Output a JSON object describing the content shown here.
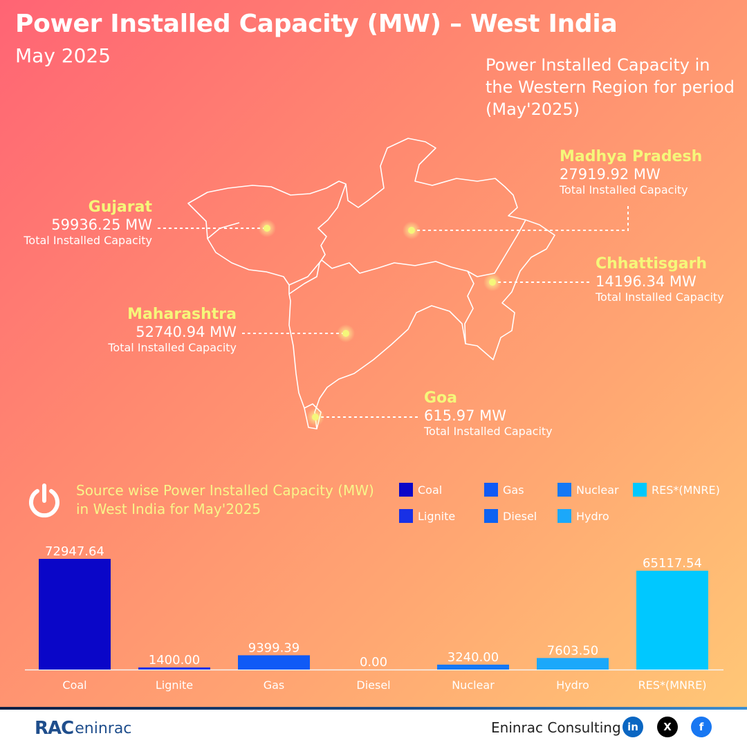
{
  "header": {
    "title": "Power Installed Capacity (MW) – West India",
    "subtitle": "May 2025",
    "intro": "Power Installed Capacity in the Western Region for period (May'2025)"
  },
  "states": [
    {
      "name": "Gujarat",
      "mw": "59936.25 MW",
      "caption": "Total Installed Capacity"
    },
    {
      "name": "Madhya Pradesh",
      "mw": "27919.92 MW",
      "caption": "Total Installed Capacity"
    },
    {
      "name": "Chhattisgarh",
      "mw": "14196.34 MW",
      "caption": "Total Installed Capacity"
    },
    {
      "name": "Maharashtra",
      "mw": "52740.94 MW",
      "caption": "Total Installed Capacity"
    },
    {
      "name": "Goa",
      "mw": "615.97 MW",
      "caption": "Total Installed Capacity"
    }
  ],
  "source_section": {
    "title": "Source wise Power Installed Capacity (MW) in West India for May'2025",
    "icon": "power-icon"
  },
  "chart_data": {
    "type": "bar",
    "categories": [
      "Coal",
      "Lignite",
      "Gas",
      "Diesel",
      "Nuclear",
      "Hydro",
      "RES*(MNRE)"
    ],
    "values": [
      72947.64,
      1400.0,
      9399.39,
      0.0,
      3240.0,
      7603.5,
      65117.54
    ],
    "value_labels": [
      "72947.64",
      "1400.00",
      "9399.39",
      "0.00",
      "3240.00",
      "7603.50",
      "65117.54"
    ],
    "colors": [
      "#0a06c8",
      "#1830e6",
      "#0f5af6",
      "#0d62f2",
      "#1478f5",
      "#1ba8fa",
      "#00c8ff"
    ],
    "legend": [
      {
        "label": "Coal",
        "color": "#0a06c8"
      },
      {
        "label": "Gas",
        "color": "#0f5af6"
      },
      {
        "label": "Nuclear",
        "color": "#1478f5"
      },
      {
        "label": "RES*(MNRE)",
        "color": "#00c8ff"
      },
      {
        "label": "Lignite",
        "color": "#1830e6"
      },
      {
        "label": "Diesel",
        "color": "#0d62f2"
      },
      {
        "label": "Hydro",
        "color": "#1ba8fa"
      }
    ],
    "ylim": [
      0,
      72947.64
    ],
    "grid": false,
    "legend_placement": "top-right"
  },
  "footer": {
    "logo_text": "RAC",
    "logo_text2": "eninrac",
    "brand": "Eninrac Consulting",
    "social": [
      {
        "icon": "linkedin-icon",
        "text": "in",
        "color": "#0a66c2"
      },
      {
        "icon": "x-icon",
        "text": "X",
        "color": "#000000"
      },
      {
        "icon": "facebook-icon",
        "text": "f",
        "color": "#1877f2"
      }
    ]
  }
}
